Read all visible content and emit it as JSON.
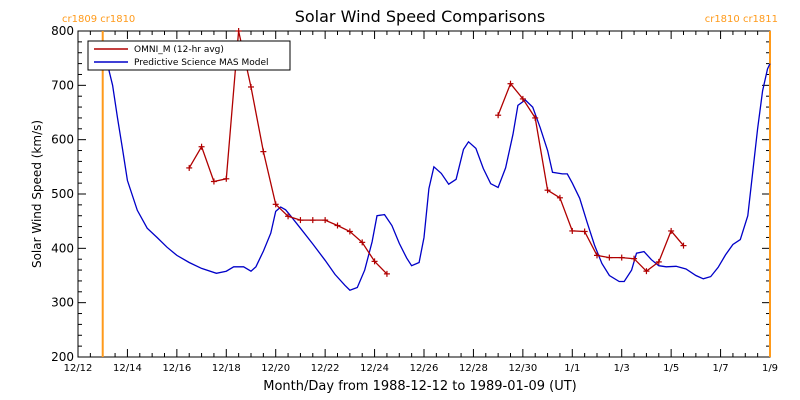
{
  "chart_data": {
    "type": "line",
    "title": "Solar Wind Speed Comparisons",
    "xlabel": "Month/Day from 1988-12-12 to 1989-01-09 (UT)",
    "ylabel": "Solar Wind Speed (km/s)",
    "ylim": [
      200,
      800
    ],
    "xlim": [
      "1988-12-12",
      "1989-01-09"
    ],
    "x_ticks": [
      "12/12",
      "12/14",
      "12/16",
      "12/18",
      "12/20",
      "12/22",
      "12/24",
      "12/26",
      "12/28",
      "12/30",
      "1/1",
      "1/3",
      "1/5",
      "1/7",
      "1/9"
    ],
    "y_ticks": [
      200,
      300,
      400,
      500,
      600,
      700,
      800
    ],
    "legend_placement": "top-left",
    "carrington_rotation_labels": [
      {
        "text": "cr1809 cr1810",
        "side": "left"
      },
      {
        "text": "cr1810 cr1811",
        "side": "right"
      }
    ],
    "vertical_markers": [
      "1988-12-13.0",
      "1989-01-09.0"
    ],
    "colors": {
      "omni": "#b00000",
      "model": "#0000c8",
      "markers": "#ff9a1a",
      "frame": "#000000"
    },
    "series": [
      {
        "name": "OMNI_M (12-hr avg)",
        "style": "line+plus",
        "points": [
          [
            "1988-12-16.5",
            548
          ],
          [
            "1988-12-17.0",
            587
          ],
          [
            "1988-12-17.5",
            523
          ],
          [
            "1988-12-18.0",
            528
          ],
          [
            "1988-12-18.5",
            800
          ],
          [
            "1988-12-19.0",
            697
          ],
          [
            "1988-12-19.5",
            578
          ],
          [
            "1988-12-20.0",
            481
          ],
          [
            "1988-12-20.5",
            459
          ],
          [
            "1988-12-21.0",
            452
          ],
          [
            "1988-12-21.5",
            452
          ],
          [
            "1988-12-22.0",
            452
          ],
          [
            "1988-12-22.5",
            442
          ],
          [
            "1988-12-23.0",
            431
          ],
          [
            "1988-12-23.5",
            411
          ],
          [
            "1988-12-24.0",
            376
          ],
          [
            "1988-12-24.5",
            353
          ],
          [
            "1988-12-29.0",
            645
          ],
          [
            "1988-12-29.5",
            703
          ],
          [
            "1988-12-30.0",
            675
          ],
          [
            "1988-12-30.5",
            640
          ],
          [
            "1988-12-31.0",
            507
          ],
          [
            "1988-12-31.5",
            493
          ],
          [
            "1989-01-01.0",
            432
          ],
          [
            "1989-01-01.5",
            431
          ],
          [
            "1989-01-02.0",
            387
          ],
          [
            "1989-01-02.5",
            383
          ],
          [
            "1989-01-03.0",
            383
          ],
          [
            "1989-01-03.5",
            381
          ],
          [
            "1989-01-04.0",
            358
          ],
          [
            "1989-01-04.5",
            375
          ],
          [
            "1989-01-05.0",
            432
          ],
          [
            "1989-01-05.5",
            405
          ]
        ]
      },
      {
        "name": "Predictive Science MAS Model",
        "style": "line",
        "points": [
          [
            "1988-12-13.0",
            742
          ],
          [
            "1988-12-13.2",
            737
          ],
          [
            "1988-12-13.4",
            700
          ],
          [
            "1988-12-13.6",
            640
          ],
          [
            "1988-12-13.8",
            583
          ],
          [
            "1988-12-14.0",
            525
          ],
          [
            "1988-12-14.4",
            470
          ],
          [
            "1988-12-14.8",
            437
          ],
          [
            "1988-12-15.2",
            420
          ],
          [
            "1988-12-15.6",
            402
          ],
          [
            "1988-12-16.0",
            387
          ],
          [
            "1988-12-16.5",
            374
          ],
          [
            "1988-12-17.0",
            363
          ],
          [
            "1988-12-17.6",
            354
          ],
          [
            "1988-12-18.0",
            358
          ],
          [
            "1988-12-18.3",
            366
          ],
          [
            "1988-12-18.7",
            366
          ],
          [
            "1988-12-19.0",
            358
          ],
          [
            "1988-12-19.2",
            366
          ],
          [
            "1988-12-19.5",
            395
          ],
          [
            "1988-12-19.8",
            428
          ],
          [
            "1988-12-20.0",
            468
          ],
          [
            "1988-12-20.2",
            476
          ],
          [
            "1988-12-20.4",
            471
          ],
          [
            "1988-12-20.6",
            460
          ],
          [
            "1988-12-21.0",
            437
          ],
          [
            "1988-12-21.5",
            408
          ],
          [
            "1988-12-22.0",
            378
          ],
          [
            "1988-12-22.4",
            352
          ],
          [
            "1988-12-22.8",
            332
          ],
          [
            "1988-12-23.0",
            323
          ],
          [
            "1988-12-23.3",
            328
          ],
          [
            "1988-12-23.6",
            360
          ],
          [
            "1988-12-23.9",
            412
          ],
          [
            "1988-12-24.1",
            460
          ],
          [
            "1988-12-24.4",
            462
          ],
          [
            "1988-12-24.7",
            442
          ],
          [
            "1988-12-25.0",
            409
          ],
          [
            "1988-12-25.3",
            382
          ],
          [
            "1988-12-25.5",
            368
          ],
          [
            "1988-12-25.8",
            374
          ],
          [
            "1988-12-26.0",
            420
          ],
          [
            "1988-12-26.2",
            510
          ],
          [
            "1988-12-26.4",
            550
          ],
          [
            "1988-12-26.7",
            538
          ],
          [
            "1988-12-27.0",
            518
          ],
          [
            "1988-12-27.3",
            527
          ],
          [
            "1988-12-27.6",
            582
          ],
          [
            "1988-12-27.8",
            596
          ],
          [
            "1988-12-28.1",
            584
          ],
          [
            "1988-12-28.4",
            547
          ],
          [
            "1988-12-28.7",
            519
          ],
          [
            "1988-12-29.0",
            512
          ],
          [
            "1988-12-29.3",
            548
          ],
          [
            "1988-12-29.6",
            610
          ],
          [
            "1988-12-29.8",
            663
          ],
          [
            "1988-12-30.1",
            673
          ],
          [
            "1988-12-30.4",
            660
          ],
          [
            "1988-12-30.7",
            622
          ],
          [
            "1988-12-31.0",
            580
          ],
          [
            "1988-12-31.2",
            540
          ],
          [
            "1988-12-31.6",
            537
          ],
          [
            "1988-12-31.8",
            537
          ],
          [
            "1989-01-01.0",
            520
          ],
          [
            "1989-01-01.3",
            492
          ],
          [
            "1989-01-01.6",
            448
          ],
          [
            "1989-01-01.9",
            406
          ],
          [
            "1989-01-02.2",
            372
          ],
          [
            "1989-01-02.5",
            350
          ],
          [
            "1989-01-02.9",
            339
          ],
          [
            "1989-01-03.1",
            339
          ],
          [
            "1989-01-03.4",
            360
          ],
          [
            "1989-01-03.6",
            391
          ],
          [
            "1989-01-03.9",
            394
          ],
          [
            "1989-01-04.2",
            379
          ],
          [
            "1989-01-04.5",
            368
          ],
          [
            "1989-01-04.8",
            366
          ],
          [
            "1989-01-05.2",
            367
          ],
          [
            "1989-01-05.6",
            362
          ],
          [
            "1989-01-06.0",
            350
          ],
          [
            "1989-01-06.3",
            344
          ],
          [
            "1989-01-06.6",
            348
          ],
          [
            "1989-01-06.9",
            365
          ],
          [
            "1989-01-07.2",
            388
          ],
          [
            "1989-01-07.5",
            407
          ],
          [
            "1989-01-07.8",
            416
          ],
          [
            "1989-01-08.1",
            460
          ],
          [
            "1989-01-08.3",
            540
          ],
          [
            "1989-01-08.5",
            620
          ],
          [
            "1989-01-08.7",
            690
          ],
          [
            "1989-01-08.9",
            730
          ],
          [
            "1989-01-09.0",
            740
          ]
        ]
      }
    ]
  }
}
